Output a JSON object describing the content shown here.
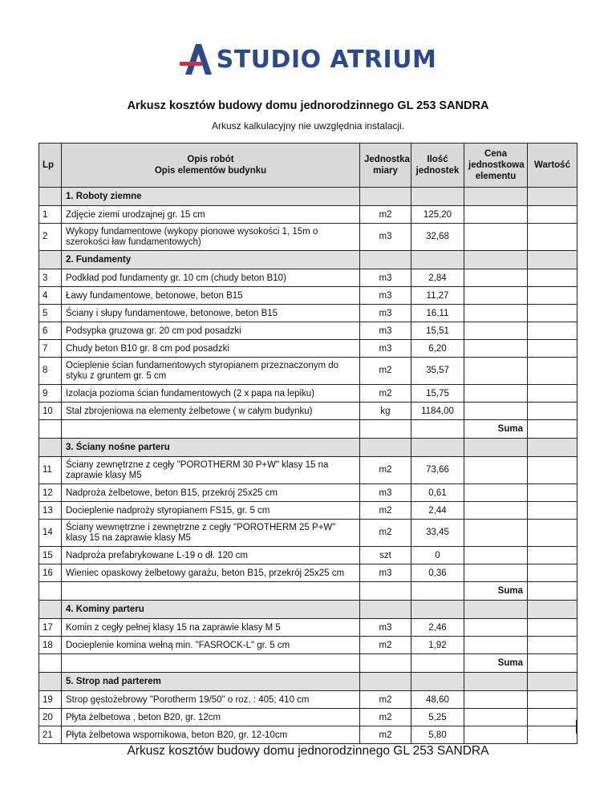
{
  "logo": {
    "text": "STUDIO ATRIUM",
    "brand_color": "#2b4a8b",
    "accent_color": "#e2283a"
  },
  "title": "Arkusz kosztów budowy domu jednorodzinnego GL 253 SANDRA",
  "subtitle": "Arkusz kalkulacyjny nie uwzględnia instalacji.",
  "table": {
    "headers": {
      "lp": "Lp",
      "desc_1": "Opis robót",
      "desc_2": "Opis elementów budynku",
      "unit_1": "Jednostka",
      "unit_2": "miary",
      "qty_1": "Ilość",
      "qty_2": "jednostek",
      "price_1": "Cena",
      "price_2": "jednostkowa",
      "price_3": "elementu",
      "value": "Wartość"
    },
    "rows": [
      {
        "type": "section",
        "label": "1. Roboty ziemne"
      },
      {
        "type": "single",
        "lp": "1",
        "desc": "Zdjęcie ziemi urodzajnej gr. 15 cm",
        "unit": "m2",
        "qty": "125,20"
      },
      {
        "type": "double",
        "lp": "2",
        "desc": "Wykopy fundamentowe (wykopy pionowe wysokości 1, 15m o szerokości ław fundamentowych)",
        "unit": "m3",
        "qty": "32,68"
      },
      {
        "type": "section",
        "label": "2. Fundamenty"
      },
      {
        "type": "single",
        "lp": "3",
        "desc": "Podkład pod fundamenty gr. 10 cm (chudy beton B10)",
        "unit": "m3",
        "qty": "2,84"
      },
      {
        "type": "single",
        "lp": "4",
        "desc": "Ławy fundamentowe, betonowe, beton B15",
        "unit": "m3",
        "qty": "11,27"
      },
      {
        "type": "single",
        "lp": "5",
        "desc": "Ściany i słupy fundamentowe, betonowe, beton B15",
        "unit": "m3",
        "qty": "16,11"
      },
      {
        "type": "single",
        "lp": "6",
        "desc": "Podsypka gruzowa gr. 20 cm pod posadzki",
        "unit": "m3",
        "qty": "15,51"
      },
      {
        "type": "single",
        "lp": "7",
        "desc": "Chudy beton B10 gr. 8 cm pod posadzki",
        "unit": "m3",
        "qty": "6,20"
      },
      {
        "type": "double",
        "lp": "8",
        "desc": "Ocieplenie ścian fundamentowych styropianem przeznaczonym do styku z gruntem gr. 5 cm",
        "unit": "m2",
        "qty": "35,57"
      },
      {
        "type": "single",
        "lp": "9",
        "desc": "Izolacja pozioma ścian fundamentowych (2 x papa na lepiku)",
        "unit": "m2",
        "qty": "15,75"
      },
      {
        "type": "single",
        "lp": "10",
        "desc": "Stal zbrojeniowa na elementy żelbetowe ( w całym budynku)",
        "unit": "kg",
        "qty": "1184,00"
      },
      {
        "type": "suma",
        "label": "Suma"
      },
      {
        "type": "section",
        "label": "3. Ściany nośne parteru"
      },
      {
        "type": "double",
        "lp": "11",
        "desc": "Ściany zewnętrzne z cegły \"POROTHERM 30 P+W\" klasy 15 na zaprawie klasy M5",
        "unit": "m2",
        "qty": "73,66"
      },
      {
        "type": "single",
        "lp": "12",
        "desc": "Nadproża żelbetowe, beton B15, przekrój 25x25 cm",
        "unit": "m3",
        "qty": "0,61"
      },
      {
        "type": "single",
        "lp": "13",
        "desc": "Docieplenie nadproży styropianem FS15, gr. 5 cm",
        "unit": "m2",
        "qty": "2,44"
      },
      {
        "type": "double",
        "lp": "14",
        "desc": "Ściany wewnętrzne i zewnętrzne z cegły \"POROTHERM 25 P+W\" klasy 15 na zaprawie klasy M5",
        "unit": "m2",
        "qty": "33,45"
      },
      {
        "type": "single",
        "lp": "15",
        "desc": "Nadproża prefabrykowane L-19 o dł. 120 cm",
        "unit": "szt",
        "qty": "0"
      },
      {
        "type": "single",
        "lp": "16",
        "desc": "Wieniec opaskowy żelbetowy garażu, beton B15, przekrój 25x25 cm",
        "unit": "m3",
        "qty": "0,36"
      },
      {
        "type": "suma",
        "label": "Suma"
      },
      {
        "type": "section",
        "label": "4. Kominy parteru"
      },
      {
        "type": "single",
        "lp": "17",
        "desc": "Komin z cegły pełnej klasy 15 na zaprawie klasy M 5",
        "unit": "m3",
        "qty": "2,46"
      },
      {
        "type": "single",
        "lp": "18",
        "desc": "Docieplenie komina wełną min. \"FASROCK-L\" gr. 5 cm",
        "unit": "m2",
        "qty": "1,92"
      },
      {
        "type": "suma",
        "label": "Suma"
      },
      {
        "type": "section",
        "label": "5. Strop nad parterem"
      },
      {
        "type": "single",
        "lp": "19",
        "desc": "Strop gęstożebrowy \"Porotherm 19/50\" o roz. : 405; 410 cm",
        "unit": "m2",
        "qty": "48,60"
      },
      {
        "type": "single",
        "lp": "20",
        "desc": "Płyta żelbetowa , beton B20, gr. 12cm",
        "unit": "m2",
        "qty": "5,25"
      },
      {
        "type": "single",
        "lp": "21",
        "desc": "Płyta żelbetowa wspornikowa, beton B20, gr. 12-10cm",
        "unit": "m2",
        "qty": "5,80"
      }
    ]
  },
  "footer": "Arkusz kosztów budowy domu jednorodzinnego GL 253 SANDRA"
}
